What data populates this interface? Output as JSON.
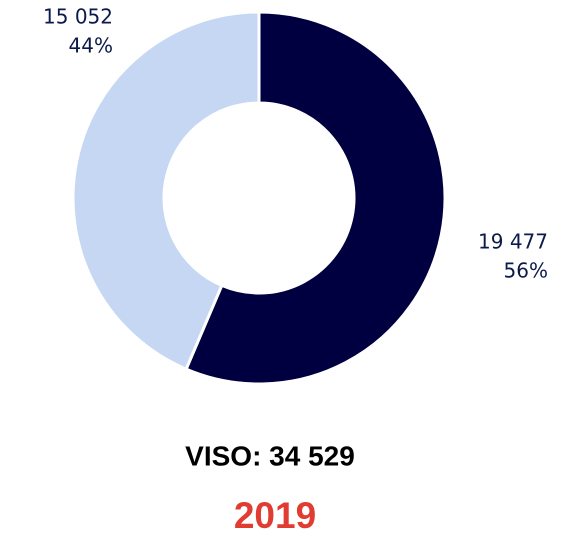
{
  "chart_data": {
    "type": "donut",
    "values": [
      19477,
      15052
    ],
    "value_labels": [
      "19 477",
      "15 052"
    ],
    "percentages": [
      56,
      44
    ],
    "percentage_labels": [
      "56%",
      "44%"
    ],
    "colors": [
      "#000040",
      "#c5d7f2"
    ],
    "title": "VISO: 34 529",
    "subtitle": "2019"
  }
}
